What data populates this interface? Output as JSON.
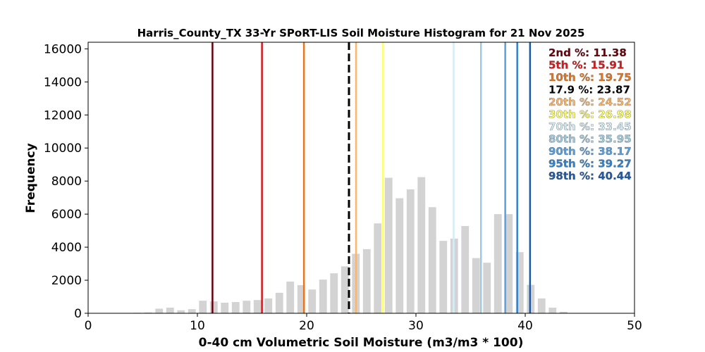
{
  "chart_data": {
    "type": "bar",
    "title": "Harris_County_TX 33-Yr SPoRT-LIS Soil Moisture Histogram for 21 Nov 2025",
    "xlabel": "0-40 cm Volumetric Soil Moisture (m3/m3 * 100)",
    "ylabel": "Frequency",
    "xlim": [
      0,
      50
    ],
    "ylim": [
      0,
      16400
    ],
    "xticks": [
      "0",
      "10",
      "20",
      "30",
      "40",
      "50"
    ],
    "yticks": [
      "0",
      "2000",
      "4000",
      "6000",
      "8000",
      "10000",
      "12000",
      "14000",
      "16000"
    ],
    "bar_color": "#d3d3d3",
    "bin_width": 1,
    "bins": [
      {
        "x": 4.5,
        "value": 30
      },
      {
        "x": 5.5,
        "value": 50
      },
      {
        "x": 6.5,
        "value": 280
      },
      {
        "x": 7.5,
        "value": 340
      },
      {
        "x": 8.5,
        "value": 180
      },
      {
        "x": 9.5,
        "value": 250
      },
      {
        "x": 10.5,
        "value": 760
      },
      {
        "x": 11.5,
        "value": 720
      },
      {
        "x": 12.5,
        "value": 640
      },
      {
        "x": 13.5,
        "value": 680
      },
      {
        "x": 14.5,
        "value": 760
      },
      {
        "x": 15.5,
        "value": 800
      },
      {
        "x": 16.5,
        "value": 900
      },
      {
        "x": 17.5,
        "value": 1240
      },
      {
        "x": 18.5,
        "value": 1920
      },
      {
        "x": 19.5,
        "value": 1700
      },
      {
        "x": 20.5,
        "value": 1440
      },
      {
        "x": 21.5,
        "value": 2040
      },
      {
        "x": 22.5,
        "value": 2420
      },
      {
        "x": 23.5,
        "value": 2840
      },
      {
        "x": 24.5,
        "value": 3600
      },
      {
        "x": 25.5,
        "value": 3880
      },
      {
        "x": 26.5,
        "value": 5440
      },
      {
        "x": 27.5,
        "value": 8200
      },
      {
        "x": 28.5,
        "value": 6960
      },
      {
        "x": 29.5,
        "value": 7500
      },
      {
        "x": 30.5,
        "value": 8240
      },
      {
        "x": 31.5,
        "value": 6420
      },
      {
        "x": 32.5,
        "value": 4380
      },
      {
        "x": 33.5,
        "value": 4520
      },
      {
        "x": 34.5,
        "value": 5280
      },
      {
        "x": 35.5,
        "value": 3340
      },
      {
        "x": 36.5,
        "value": 3060
      },
      {
        "x": 37.5,
        "value": 6000
      },
      {
        "x": 38.5,
        "value": 6000
      },
      {
        "x": 39.5,
        "value": 3700
      },
      {
        "x": 40.5,
        "value": 1720
      },
      {
        "x": 41.5,
        "value": 900
      },
      {
        "x": 42.5,
        "value": 340
      },
      {
        "x": 43.5,
        "value": 90
      }
    ],
    "percentile_lines": [
      {
        "label": "2nd %: 11.38",
        "value": 11.38,
        "color": "#67000d",
        "dashed": false
      },
      {
        "label": "5th %: 15.91",
        "value": 15.91,
        "color": "#d7191c",
        "dashed": false
      },
      {
        "label": "10th %: 19.75",
        "value": 19.75,
        "color": "#e6761f",
        "dashed": false
      },
      {
        "label": "17.9 %: 23.87",
        "value": 23.87,
        "color": "#000000",
        "dashed": true
      },
      {
        "label": "20th %: 24.52",
        "value": 24.52,
        "color": "#fdb56a",
        "dashed": false
      },
      {
        "label": "30th %: 26.98",
        "value": 26.98,
        "color": "#ffff66",
        "dashed": false
      },
      {
        "label": "70th %: 33.45",
        "value": 33.45,
        "color": "#d4eef8",
        "dashed": false
      },
      {
        "label": "80th %: 35.95",
        "value": 35.95,
        "color": "#9ecae1",
        "dashed": false
      },
      {
        "label": "90th %: 38.17",
        "value": 38.17,
        "color": "#5aa0e0",
        "dashed": false
      },
      {
        "label": "95th %: 39.27",
        "value": 39.27,
        "color": "#3182d0",
        "dashed": false
      },
      {
        "label": "98th %: 40.44",
        "value": 40.44,
        "color": "#1f5aa8",
        "dashed": false
      }
    ],
    "legend_placement": "top-right",
    "grid": false
  }
}
